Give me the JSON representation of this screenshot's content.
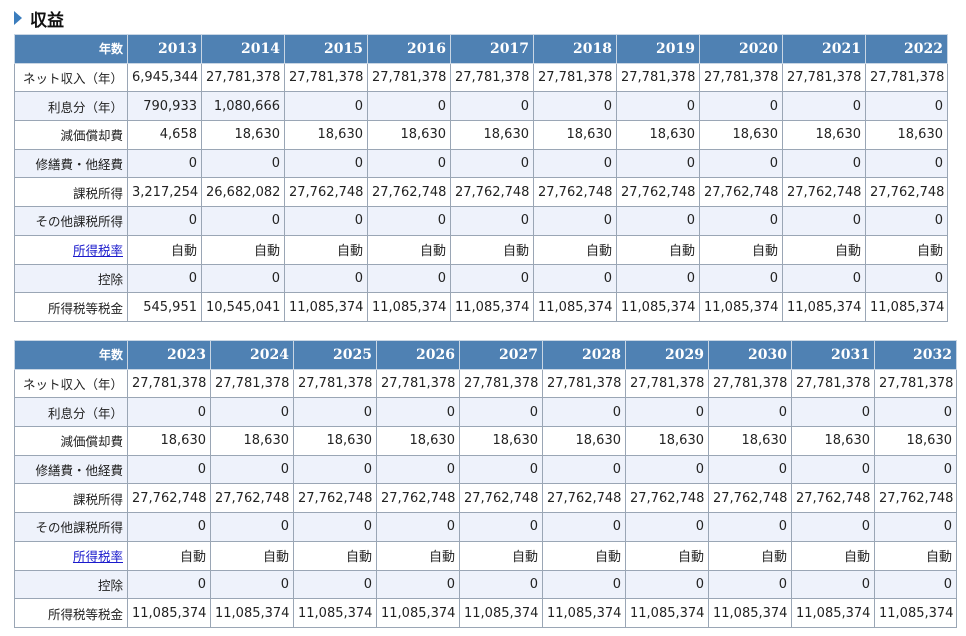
{
  "section": {
    "title": "収益"
  },
  "header_label": "年数",
  "row_labels": [
    "ネット収入（年）",
    "利息分（年）",
    "減価償却費",
    "修繕費・他経費",
    "課税所得",
    "その他課税所得",
    "所得税率",
    "控除",
    "所得税等税金"
  ],
  "tables": [
    {
      "years": [
        "2013",
        "2014",
        "2015",
        "2016",
        "2017",
        "2018",
        "2019",
        "2020",
        "2021",
        "2022"
      ],
      "rows": [
        [
          "6,945,344",
          "27,781,378",
          "27,781,378",
          "27,781,378",
          "27,781,378",
          "27,781,378",
          "27,781,378",
          "27,781,378",
          "27,781,378",
          "27,781,378"
        ],
        [
          "790,933",
          "1,080,666",
          "0",
          "0",
          "0",
          "0",
          "0",
          "0",
          "0",
          "0"
        ],
        [
          "4,658",
          "18,630",
          "18,630",
          "18,630",
          "18,630",
          "18,630",
          "18,630",
          "18,630",
          "18,630",
          "18,630"
        ],
        [
          "0",
          "0",
          "0",
          "0",
          "0",
          "0",
          "0",
          "0",
          "0",
          "0"
        ],
        [
          "3,217,254",
          "26,682,082",
          "27,762,748",
          "27,762,748",
          "27,762,748",
          "27,762,748",
          "27,762,748",
          "27,762,748",
          "27,762,748",
          "27,762,748"
        ],
        [
          "0",
          "0",
          "0",
          "0",
          "0",
          "0",
          "0",
          "0",
          "0",
          "0"
        ],
        [
          "自動",
          "自動",
          "自動",
          "自動",
          "自動",
          "自動",
          "自動",
          "自動",
          "自動",
          "自動"
        ],
        [
          "0",
          "0",
          "0",
          "0",
          "0",
          "0",
          "0",
          "0",
          "0",
          "0"
        ],
        [
          "545,951",
          "10,545,041",
          "11,085,374",
          "11,085,374",
          "11,085,374",
          "11,085,374",
          "11,085,374",
          "11,085,374",
          "11,085,374",
          "11,085,374"
        ]
      ]
    },
    {
      "years": [
        "2023",
        "2024",
        "2025",
        "2026",
        "2027",
        "2028",
        "2029",
        "2030",
        "2031",
        "2032"
      ],
      "rows": [
        [
          "27,781,378",
          "27,781,378",
          "27,781,378",
          "27,781,378",
          "27,781,378",
          "27,781,378",
          "27,781,378",
          "27,781,378",
          "27,781,378",
          "27,781,378"
        ],
        [
          "0",
          "0",
          "0",
          "0",
          "0",
          "0",
          "0",
          "0",
          "0",
          "0"
        ],
        [
          "18,630",
          "18,630",
          "18,630",
          "18,630",
          "18,630",
          "18,630",
          "18,630",
          "18,630",
          "18,630",
          "18,630"
        ],
        [
          "0",
          "0",
          "0",
          "0",
          "0",
          "0",
          "0",
          "0",
          "0",
          "0"
        ],
        [
          "27,762,748",
          "27,762,748",
          "27,762,748",
          "27,762,748",
          "27,762,748",
          "27,762,748",
          "27,762,748",
          "27,762,748",
          "27,762,748",
          "27,762,748"
        ],
        [
          "0",
          "0",
          "0",
          "0",
          "0",
          "0",
          "0",
          "0",
          "0",
          "0"
        ],
        [
          "自動",
          "自動",
          "自動",
          "自動",
          "自動",
          "自動",
          "自動",
          "自動",
          "自動",
          "自動"
        ],
        [
          "0",
          "0",
          "0",
          "0",
          "0",
          "0",
          "0",
          "0",
          "0",
          "0"
        ],
        [
          "11,085,374",
          "11,085,374",
          "11,085,374",
          "11,085,374",
          "11,085,374",
          "11,085,374",
          "11,085,374",
          "11,085,374",
          "11,085,374",
          "11,085,374"
        ]
      ]
    }
  ]
}
